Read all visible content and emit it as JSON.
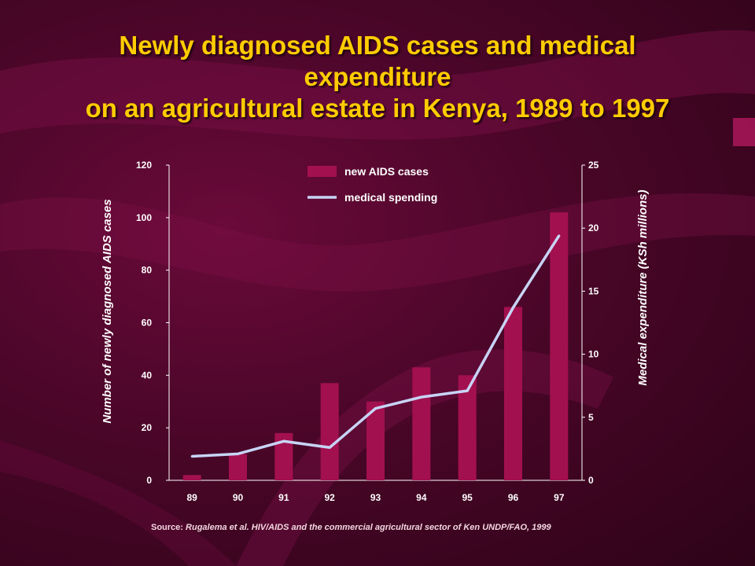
{
  "title": {
    "line1": "Newly diagnosed AIDS cases and medical",
    "line2": "expenditure",
    "line3": "on an agricultural estate in Kenya, 1989 to 1997"
  },
  "colors": {
    "background": "#4a0628",
    "title": "#ffcc00",
    "bar": "#a3104f",
    "line": "#c8d4f5",
    "text": "#ffffff"
  },
  "chart_data": {
    "type": "bar",
    "categories": [
      "89",
      "90",
      "91",
      "92",
      "93",
      "94",
      "95",
      "96",
      "97"
    ],
    "series": [
      {
        "name": "new AIDS cases",
        "type": "bar",
        "axis": "left",
        "values": [
          2,
          10,
          18,
          37,
          30,
          43,
          40,
          66,
          102
        ]
      },
      {
        "name": "medical spending",
        "type": "line",
        "axis": "right",
        "values": [
          1.9,
          2.1,
          3.1,
          2.6,
          5.7,
          6.6,
          7.1,
          13.7,
          19.4
        ]
      }
    ],
    "ylabel": "Number of newly diagnosed AIDS cases",
    "y2label": "Medical expenditure (KSh millions)",
    "ylim": [
      0,
      120
    ],
    "y2lim": [
      0,
      25
    ],
    "yticks": [
      "0",
      "20",
      "40",
      "60",
      "80",
      "100",
      "120"
    ],
    "y2ticks": [
      "0",
      "5",
      "10",
      "15",
      "20",
      "25"
    ],
    "grid": false,
    "legend": "top-center"
  },
  "source": {
    "label": "Source:",
    "text": "Rugalema et al. HIV/AIDS and the commercial agricultural sector of Ken UNDP/FAO, 1999"
  }
}
